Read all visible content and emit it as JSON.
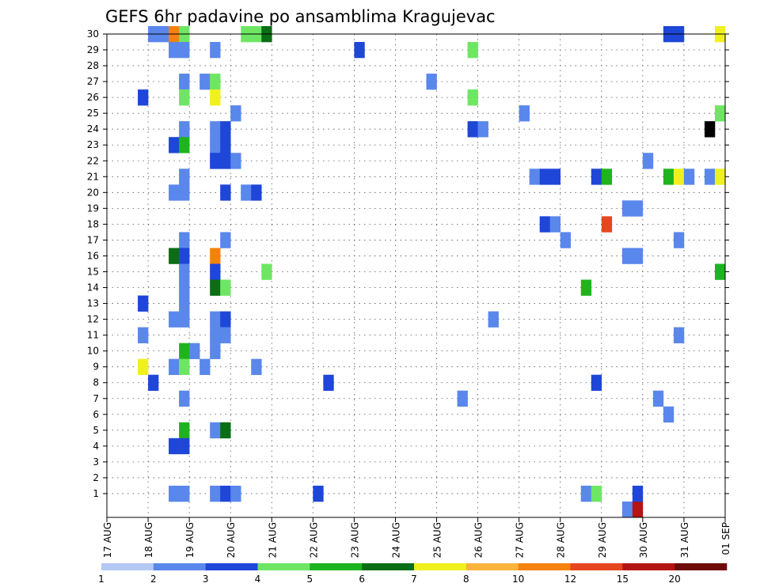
{
  "chart_data": {
    "type": "heatmap",
    "title": "GEFS 6hr padavine po ansamblima Kragujevac",
    "xlabel": "",
    "ylabel": "",
    "x_ticks": [
      "17 AUG",
      "18 AUG",
      "19 AUG",
      "20 AUG",
      "21 AUG",
      "22 AUG",
      "23 AUG",
      "24 AUG",
      "25 AUG",
      "26 AUG",
      "27 AUG",
      "28 AUG",
      "29 AUG",
      "30 AUG",
      "31 AUG",
      "01 SEP"
    ],
    "x_range": [
      0,
      60
    ],
    "x_unit": "6-hour steps from 17 AUG 00Z",
    "y_ticks": [
      "1",
      "2",
      "3",
      "4",
      "5",
      "6",
      "7",
      "8",
      "9",
      "10",
      "11",
      "12",
      "13",
      "14",
      "15",
      "16",
      "17",
      "18",
      "19",
      "20",
      "21",
      "22",
      "23",
      "24",
      "25",
      "26",
      "27",
      "28",
      "29",
      "30"
    ],
    "y_range": [
      0,
      30
    ],
    "grid": true,
    "colorbar": {
      "labels": [
        "1",
        "2",
        "3",
        "4",
        "5",
        "6",
        "7",
        "8",
        "10",
        "12",
        "15",
        "20"
      ],
      "colors": [
        "#b4c8f5",
        "#5a87eb",
        "#1e46d7",
        "#6ee664",
        "#1eb41e",
        "#0a6e14",
        "#f0f01e",
        "#fab43c",
        "#f5820f",
        "#e6461e",
        "#b41414",
        "#6e0a0a"
      ]
    },
    "cells": [
      [
        4,
        30,
        1
      ],
      [
        5,
        30,
        1
      ],
      [
        6,
        30,
        8
      ],
      [
        7,
        30,
        3
      ],
      [
        13,
        30,
        3
      ],
      [
        14,
        30,
        3
      ],
      [
        15,
        30,
        5
      ],
      [
        54,
        30,
        2
      ],
      [
        55,
        30,
        2
      ],
      [
        59,
        30,
        6
      ],
      [
        6,
        29,
        1
      ],
      [
        7,
        29,
        1
      ],
      [
        10,
        29,
        1
      ],
      [
        24,
        29,
        2
      ],
      [
        35,
        29,
        3
      ],
      [
        7,
        27,
        1
      ],
      [
        9,
        27,
        1
      ],
      [
        10,
        27,
        3
      ],
      [
        31,
        27,
        1
      ],
      [
        3,
        26,
        2
      ],
      [
        7,
        26,
        3
      ],
      [
        10,
        26,
        6
      ],
      [
        35,
        26,
        3
      ],
      [
        12,
        25,
        1
      ],
      [
        40,
        25,
        1
      ],
      [
        59,
        25,
        3
      ],
      [
        7,
        24,
        1
      ],
      [
        10,
        24,
        1
      ],
      [
        11,
        24,
        2
      ],
      [
        35,
        24,
        2
      ],
      [
        36,
        24,
        1
      ],
      [
        58,
        24,
        12
      ],
      [
        6,
        23,
        2
      ],
      [
        7,
        23,
        4
      ],
      [
        10,
        23,
        1
      ],
      [
        11,
        23,
        2
      ],
      [
        10,
        22,
        2
      ],
      [
        11,
        22,
        2
      ],
      [
        12,
        22,
        1
      ],
      [
        52,
        22,
        1
      ],
      [
        7,
        21,
        1
      ],
      [
        41,
        21,
        1
      ],
      [
        42,
        21,
        2
      ],
      [
        43,
        21,
        2
      ],
      [
        47,
        21,
        2
      ],
      [
        48,
        21,
        4
      ],
      [
        54,
        21,
        4
      ],
      [
        55,
        21,
        6
      ],
      [
        56,
        21,
        1
      ],
      [
        58,
        21,
        1
      ],
      [
        59,
        21,
        6
      ],
      [
        6,
        20,
        1
      ],
      [
        7,
        20,
        1
      ],
      [
        11,
        20,
        2
      ],
      [
        13,
        20,
        1
      ],
      [
        14,
        20,
        2
      ],
      [
        50,
        19,
        1
      ],
      [
        51,
        19,
        1
      ],
      [
        42,
        18,
        2
      ],
      [
        43,
        18,
        1
      ],
      [
        48,
        18,
        9
      ],
      [
        7,
        17,
        1
      ],
      [
        11,
        17,
        1
      ],
      [
        44,
        17,
        1
      ],
      [
        55,
        17,
        1
      ],
      [
        6,
        16,
        5
      ],
      [
        7,
        16,
        2
      ],
      [
        10,
        16,
        8
      ],
      [
        50,
        16,
        1
      ],
      [
        51,
        16,
        1
      ],
      [
        7,
        15,
        1
      ],
      [
        10,
        15,
        2
      ],
      [
        15,
        15,
        3
      ],
      [
        59,
        15,
        4
      ],
      [
        7,
        14,
        1
      ],
      [
        10,
        14,
        5
      ],
      [
        11,
        14,
        3
      ],
      [
        46,
        14,
        4
      ],
      [
        3,
        13,
        2
      ],
      [
        7,
        13,
        1
      ],
      [
        6,
        12,
        1
      ],
      [
        7,
        12,
        1
      ],
      [
        10,
        12,
        1
      ],
      [
        11,
        12,
        2
      ],
      [
        37,
        12,
        1
      ],
      [
        3,
        11,
        1
      ],
      [
        10,
        11,
        1
      ],
      [
        11,
        11,
        1
      ],
      [
        55,
        11,
        1
      ],
      [
        7,
        10,
        4
      ],
      [
        8,
        10,
        1
      ],
      [
        10,
        10,
        1
      ],
      [
        3,
        9,
        6
      ],
      [
        6,
        9,
        1
      ],
      [
        7,
        9,
        3
      ],
      [
        9,
        9,
        1
      ],
      [
        14,
        9,
        1
      ],
      [
        4,
        8,
        2
      ],
      [
        21,
        8,
        2
      ],
      [
        47,
        8,
        2
      ],
      [
        7,
        7,
        1
      ],
      [
        34,
        7,
        1
      ],
      [
        53,
        7,
        1
      ],
      [
        54,
        6,
        1
      ],
      [
        7,
        5,
        4
      ],
      [
        10,
        5,
        1
      ],
      [
        11,
        5,
        5
      ],
      [
        6,
        4,
        2
      ],
      [
        7,
        4,
        2
      ],
      [
        6,
        1,
        1
      ],
      [
        7,
        1,
        1
      ],
      [
        10,
        1,
        1
      ],
      [
        11,
        1,
        2
      ],
      [
        12,
        1,
        1
      ],
      [
        20,
        1,
        2
      ],
      [
        46,
        1,
        1
      ],
      [
        47,
        1,
        3
      ],
      [
        50,
        0,
        1
      ],
      [
        51,
        0,
        10
      ],
      [
        51,
        1,
        2
      ]
    ]
  }
}
